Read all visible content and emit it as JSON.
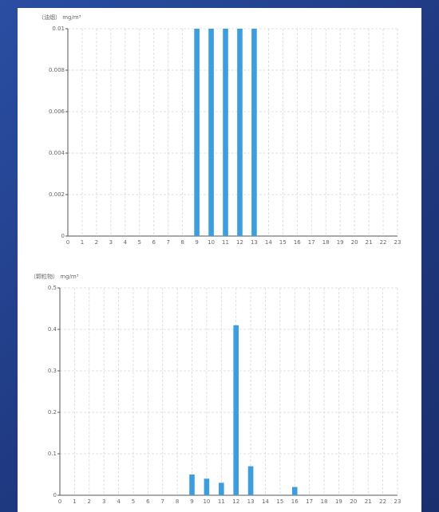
{
  "chart_data": [
    {
      "type": "bar",
      "ylabel": "（油烟） mg/m³",
      "categories": [
        "0",
        "1",
        "2",
        "3",
        "4",
        "5",
        "6",
        "7",
        "8",
        "9",
        "10",
        "11",
        "12",
        "13",
        "14",
        "15",
        "16",
        "17",
        "18",
        "19",
        "20",
        "21",
        "22",
        "23"
      ],
      "values": [
        0,
        0,
        0,
        0,
        0,
        0,
        0,
        0,
        0,
        0.01,
        0.01,
        0.01,
        0.01,
        0.01,
        0,
        0,
        0,
        0,
        0,
        0,
        0,
        0,
        0,
        0
      ],
      "color": "#3a9ee0",
      "ylim": [
        0,
        0.01
      ],
      "yticks": [
        0,
        0.002,
        0.004,
        0.006,
        0.008,
        0.01
      ],
      "grid": true
    },
    {
      "type": "bar",
      "ylabel": "（颗粒物） mg/m³",
      "categories": [
        "0",
        "1",
        "2",
        "3",
        "4",
        "5",
        "6",
        "7",
        "8",
        "9",
        "10",
        "11",
        "12",
        "13",
        "14",
        "15",
        "16",
        "17",
        "18",
        "19",
        "20",
        "21",
        "22",
        "23"
      ],
      "values": [
        0,
        0,
        0,
        0,
        0,
        0,
        0,
        0,
        0,
        0.05,
        0.04,
        0.03,
        0.41,
        0.07,
        0,
        0,
        0.02,
        0,
        0,
        0,
        0,
        0,
        0,
        0
      ],
      "color": "#3a9ee0",
      "ylim": [
        0,
        0.5
      ],
      "yticks": [
        0,
        0.1,
        0.2,
        0.3,
        0.4,
        0.5
      ],
      "grid": true
    }
  ]
}
